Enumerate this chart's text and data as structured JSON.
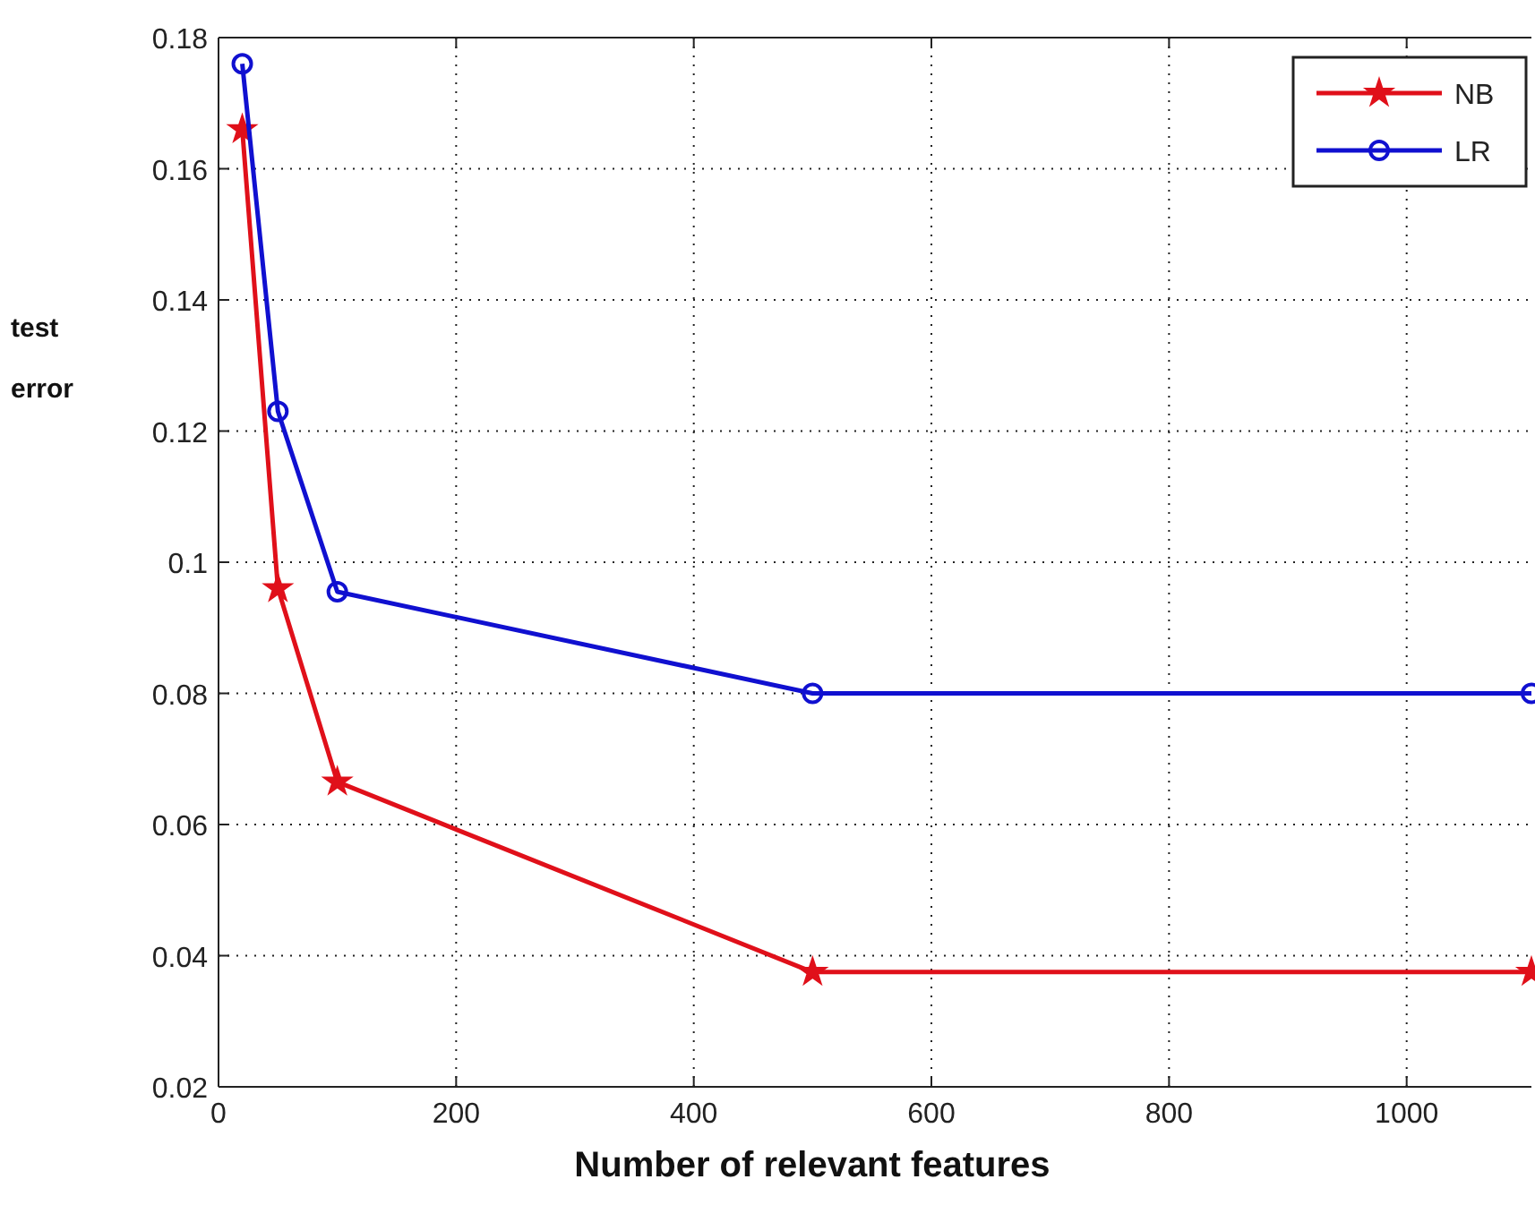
{
  "chart_data": {
    "type": "line",
    "xlabel": "Number of relevant features",
    "ylabel": "test error",
    "xlim": [
      0,
      1105
    ],
    "xticks": [
      0,
      200,
      400,
      600,
      800,
      1000
    ],
    "ylim": [
      0.02,
      0.18
    ],
    "yticks": [
      0.02,
      0.04,
      0.06,
      0.08,
      {
        "value": 0.1,
        "label": "0.1"
      },
      0.12,
      0.14,
      0.16,
      0.18
    ],
    "grid": true,
    "legend": "top right",
    "line_style": "solid",
    "series": [
      {
        "name": "NB",
        "color": "#e0101a",
        "marker": "star",
        "x": [
          20,
          50,
          100,
          500,
          1105
        ],
        "values": [
          0.166,
          0.096,
          0.0665,
          0.0375,
          0.0375
        ]
      },
      {
        "name": "LR",
        "color": "#1010d0",
        "marker": "circle",
        "x": [
          20,
          50,
          100,
          500,
          1105
        ],
        "values": [
          0.176,
          0.123,
          0.0955,
          0.08,
          0.08
        ]
      }
    ]
  }
}
